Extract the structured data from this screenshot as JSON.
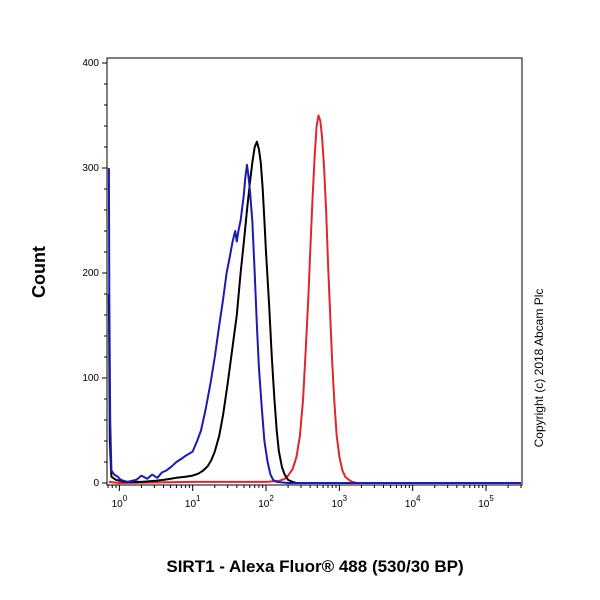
{
  "chart_data": {
    "type": "line",
    "title": "",
    "xlabel": "SIRT1 - Alexa Fluor® 488 (530/30 BP)",
    "ylabel": "Count",
    "x_scale": "log",
    "xlim": [
      0.7,
      300000
    ],
    "ylim": [
      0,
      400
    ],
    "y_ticks": [
      "0",
      "100",
      "200",
      "300",
      "400"
    ],
    "x_ticks": [
      {
        "value": 1,
        "base": "10",
        "exp": "0"
      },
      {
        "value": 10,
        "base": "10",
        "exp": "1"
      },
      {
        "value": 100,
        "base": "10",
        "exp": "2"
      },
      {
        "value": 1000,
        "base": "10",
        "exp": "3"
      },
      {
        "value": 10000,
        "base": "10",
        "exp": "4"
      },
      {
        "value": 100000,
        "base": "10",
        "exp": "5"
      }
    ],
    "grid": false,
    "series": [
      {
        "color": "#1a1ab4",
        "points": [
          [
            0.72,
            300
          ],
          [
            0.73,
            180
          ],
          [
            0.75,
            60
          ],
          [
            0.78,
            12
          ],
          [
            0.85,
            8
          ],
          [
            0.95,
            6
          ],
          [
            1.05,
            3
          ],
          [
            1.3,
            1
          ],
          [
            1.7,
            3
          ],
          [
            2.0,
            7
          ],
          [
            2.4,
            4
          ],
          [
            2.8,
            8
          ],
          [
            3.3,
            5
          ],
          [
            3.8,
            10
          ],
          [
            4.4,
            12
          ],
          [
            5.2,
            16
          ],
          [
            6.0,
            20
          ],
          [
            7.0,
            23
          ],
          [
            8.0,
            26
          ],
          [
            9.0,
            28
          ],
          [
            10,
            30
          ],
          [
            11.5,
            40
          ],
          [
            13,
            50
          ],
          [
            15,
            70
          ],
          [
            17.5,
            95
          ],
          [
            20,
            120
          ],
          [
            23,
            150
          ],
          [
            26,
            175
          ],
          [
            29,
            200
          ],
          [
            32,
            215
          ],
          [
            35,
            230
          ],
          [
            38,
            240
          ],
          [
            40,
            230
          ],
          [
            42,
            240
          ],
          [
            45,
            250
          ],
          [
            48,
            265
          ],
          [
            50,
            275
          ],
          [
            52,
            290
          ],
          [
            55,
            303
          ],
          [
            57,
            295
          ],
          [
            60,
            280
          ],
          [
            65,
            250
          ],
          [
            70,
            200
          ],
          [
            75,
            150
          ],
          [
            80,
            110
          ],
          [
            88,
            70
          ],
          [
            95,
            40
          ],
          [
            105,
            20
          ],
          [
            115,
            8
          ],
          [
            125,
            3
          ],
          [
            140,
            1
          ],
          [
            200,
            0
          ],
          [
            1000,
            0
          ],
          [
            10000,
            0
          ],
          [
            100000,
            0
          ],
          [
            300000,
            0
          ]
        ]
      },
      {
        "color": "#000000",
        "points": [
          [
            0.72,
            180
          ],
          [
            0.74,
            40
          ],
          [
            0.78,
            6
          ],
          [
            0.9,
            3
          ],
          [
            1.2,
            1
          ],
          [
            2,
            1
          ],
          [
            3,
            2
          ],
          [
            4,
            3
          ],
          [
            5,
            4
          ],
          [
            6,
            5
          ],
          [
            8,
            6
          ],
          [
            10,
            7
          ],
          [
            12,
            9
          ],
          [
            14,
            12
          ],
          [
            16,
            16
          ],
          [
            18,
            22
          ],
          [
            20,
            30
          ],
          [
            23,
            45
          ],
          [
            26,
            65
          ],
          [
            30,
            95
          ],
          [
            35,
            130
          ],
          [
            40,
            160
          ],
          [
            45,
            200
          ],
          [
            50,
            230
          ],
          [
            55,
            260
          ],
          [
            60,
            285
          ],
          [
            65,
            305
          ],
          [
            70,
            320
          ],
          [
            75,
            325
          ],
          [
            80,
            318
          ],
          [
            85,
            305
          ],
          [
            90,
            280
          ],
          [
            95,
            250
          ],
          [
            100,
            220
          ],
          [
            110,
            170
          ],
          [
            120,
            120
          ],
          [
            130,
            80
          ],
          [
            140,
            50
          ],
          [
            150,
            30
          ],
          [
            165,
            15
          ],
          [
            180,
            8
          ],
          [
            200,
            3
          ],
          [
            230,
            1
          ],
          [
            260,
            0
          ],
          [
            1000,
            0
          ],
          [
            10000,
            0
          ],
          [
            100000,
            0
          ],
          [
            300000,
            0
          ]
        ]
      },
      {
        "color": "#e0252b",
        "points": [
          [
            0.72,
            1
          ],
          [
            1,
            0
          ],
          [
            10,
            1
          ],
          [
            50,
            1
          ],
          [
            100,
            1
          ],
          [
            150,
            2
          ],
          [
            180,
            4
          ],
          [
            200,
            7
          ],
          [
            230,
            13
          ],
          [
            260,
            25
          ],
          [
            290,
            45
          ],
          [
            320,
            80
          ],
          [
            350,
            130
          ],
          [
            380,
            180
          ],
          [
            400,
            220
          ],
          [
            430,
            270
          ],
          [
            460,
            310
          ],
          [
            490,
            340
          ],
          [
            520,
            350
          ],
          [
            550,
            345
          ],
          [
            580,
            330
          ],
          [
            620,
            300
          ],
          [
            660,
            260
          ],
          [
            700,
            210
          ],
          [
            750,
            160
          ],
          [
            800,
            115
          ],
          [
            860,
            75
          ],
          [
            920,
            45
          ],
          [
            1000,
            25
          ],
          [
            1100,
            12
          ],
          [
            1200,
            6
          ],
          [
            1350,
            3
          ],
          [
            1500,
            1
          ],
          [
            1700,
            0
          ],
          [
            10000,
            0
          ],
          [
            100000,
            0
          ],
          [
            300000,
            0
          ]
        ]
      }
    ]
  },
  "copyright": "Copyright (c) 2018 Abcam Plc"
}
